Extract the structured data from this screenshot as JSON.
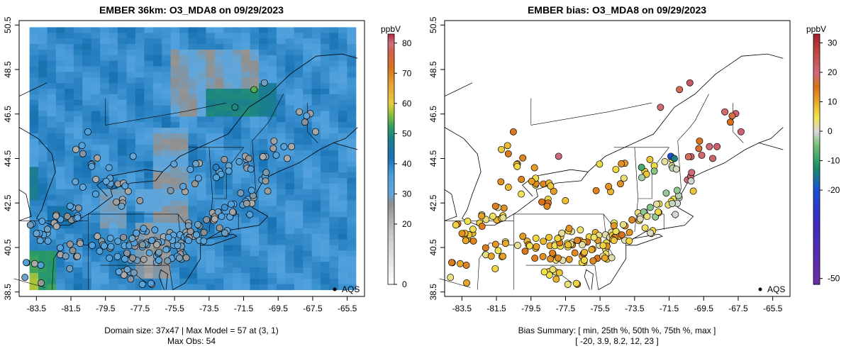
{
  "chart_data": [
    {
      "type": "heatmap",
      "title": "EMBER 36km: O3_MDA8 on 09/29/2023",
      "x_ticks": [
        "-83.5",
        "-81.5",
        "-79.5",
        "-77.5",
        "-75.5",
        "-73.5",
        "-71.5",
        "-69.5",
        "-67.5",
        "-65.5"
      ],
      "y_ticks": [
        "38.5",
        "40.5",
        "42.5",
        "44.5",
        "46.5",
        "48.5",
        "50.5"
      ],
      "xlim": [
        -84.5,
        -64.5
      ],
      "ylim": [
        38.3,
        50.7
      ],
      "colorbar": {
        "unit": "ppbV",
        "ticks": [
          "0",
          "20",
          "30",
          "40",
          "50",
          "60",
          "70",
          "80"
        ],
        "range": [
          0,
          83
        ]
      },
      "legend": {
        "label": "AQS",
        "position": "bottom-right"
      },
      "footer": [
        "Domain size: 37x47 | Max Model = 57 at (3, 1)",
        "Max Obs: 54"
      ]
    },
    {
      "type": "scatter",
      "title": "EMBER bias: O3_MDA8 on 09/29/2023",
      "x_ticks": [
        "-83.5",
        "-81.5",
        "-79.5",
        "-77.5",
        "-75.5",
        "-73.5",
        "-71.5",
        "-69.5",
        "-67.5",
        "-65.5"
      ],
      "y_ticks": [
        "38.5",
        "40.5",
        "42.5",
        "44.5",
        "46.5",
        "48.5",
        "50.5"
      ],
      "xlim": [
        -84.5,
        -64.5
      ],
      "ylim": [
        38.3,
        50.7
      ],
      "colorbar": {
        "unit": "ppbV",
        "ticks": [
          "-50",
          "-20",
          "-10",
          "0",
          "10",
          "20",
          "30"
        ],
        "range": [
          -52,
          33
        ]
      },
      "legend": {
        "label": "AQS",
        "position": "bottom-right"
      },
      "footer": [
        "Bias Summary: [ min, 25th %, 50th %, 75th %, max ]",
        "[ -20,   3.9,   8.2,   12,   23 ]"
      ],
      "bias_summary": {
        "min": -20,
        "p25": 3.9,
        "p50": 8.2,
        "p75": 12,
        "max": 23
      }
    }
  ]
}
